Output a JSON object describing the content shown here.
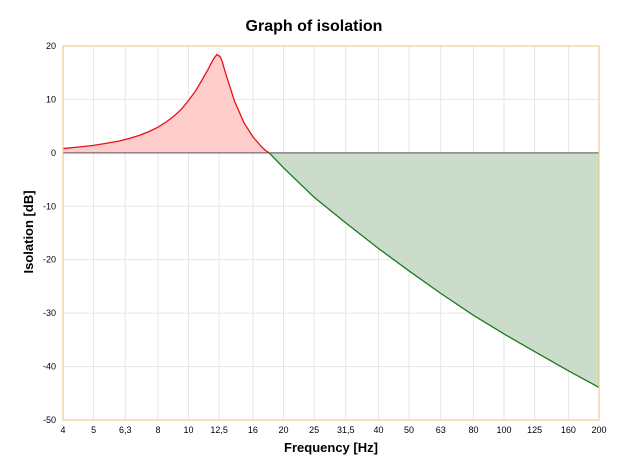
{
  "chart_data": {
    "type": "area",
    "title": "Graph of isolation",
    "xlabel": "Frequency [Hz]",
    "ylabel": "Isolation [dB]",
    "x_scale": "log",
    "categories": [
      "4",
      "5",
      "6,3",
      "8",
      "10",
      "12,5",
      "16",
      "20",
      "25",
      "31,5",
      "40",
      "50",
      "63",
      "80",
      "100",
      "125",
      "160",
      "200"
    ],
    "x_ticks": [
      4,
      5,
      6.3,
      8,
      10,
      12.5,
      16,
      20,
      25,
      31.5,
      40,
      50,
      63,
      80,
      100,
      125,
      160,
      200
    ],
    "y_ticks": [
      20,
      10,
      0,
      -10,
      -20,
      -30,
      -40,
      -50
    ],
    "ylim": [
      -50,
      20
    ],
    "xlim": [
      4,
      200
    ],
    "grid": true,
    "colors": {
      "amplification_line": "#e8101a",
      "amplification_fill": "#ffcccc",
      "isolation_line": "#1a7a1a",
      "isolation_fill": "#cbdccb",
      "zero_line": "#555555",
      "frame": "#f0c27a"
    },
    "series": [
      {
        "x": [
          4,
          4.5,
          5,
          5.5,
          6,
          6.5,
          7,
          7.5,
          8,
          8.5,
          9,
          9.5,
          10,
          10.5,
          11,
          11.5,
          12,
          12.3,
          12.6,
          12.8,
          13,
          13.5,
          14,
          15,
          16,
          17,
          17.5,
          18
        ],
        "values": [
          0.8,
          1.1,
          1.4,
          1.8,
          2.2,
          2.7,
          3.3,
          4.0,
          4.8,
          5.8,
          6.9,
          8.2,
          9.8,
          11.5,
          13.5,
          15.5,
          17.6,
          18.4,
          18.0,
          17.0,
          15.6,
          12.5,
          9.6,
          5.6,
          3.0,
          1.2,
          0.5,
          0.0
        ]
      },
      {
        "x": [
          18,
          20,
          25,
          31.5,
          40,
          50,
          63,
          80,
          100,
          125,
          160,
          200
        ],
        "values": [
          0.0,
          -2.8,
          -8.3,
          -13.1,
          -17.9,
          -22.1,
          -26.3,
          -30.4,
          -33.9,
          -37.2,
          -40.8,
          -43.9
        ]
      }
    ]
  }
}
